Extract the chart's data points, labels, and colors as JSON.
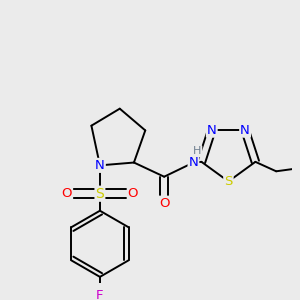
{
  "background_color": "#ebebeb",
  "atom_colors": {
    "C": "#000000",
    "N": "#0000ff",
    "O": "#ff0000",
    "S_sulfonyl": "#cccc00",
    "S_thiadiazol": "#cccc00",
    "F": "#cc00cc",
    "H": "#708090"
  },
  "bond_color": "#000000",
  "bond_width": 1.4,
  "font_size_atom": 9.5
}
